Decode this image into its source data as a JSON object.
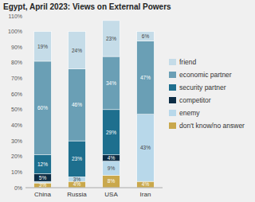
{
  "chart_data": {
    "type": "bar",
    "stacked": true,
    "data_labels": true,
    "grid": false,
    "legend": "right",
    "title": "Egypt, April 2023: Views on External Powers",
    "categories": [
      "China",
      "Russia",
      "USA",
      "Iran"
    ],
    "series": [
      {
        "name": "don't know/no answer",
        "color": "#c9a84c",
        "values": [
          3,
          4,
          8,
          4
        ],
        "value_labels": [
          "3%",
          "4%",
          "8%",
          "4%"
        ]
      },
      {
        "name": "enemy",
        "color": "#b8d8ea",
        "values": [
          1,
          3,
          9,
          43
        ],
        "value_labels": [
          null,
          "3%",
          "9%",
          "43%"
        ]
      },
      {
        "name": "competitor",
        "color": "#0d2d45",
        "values": [
          5,
          0,
          4,
          0
        ],
        "value_labels": [
          "5%",
          null,
          "4%",
          null
        ]
      },
      {
        "name": "security partner",
        "color": "#1e6f8e",
        "values": [
          12,
          23,
          29,
          0
        ],
        "value_labels": [
          "12%",
          "23%",
          "29%",
          null
        ]
      },
      {
        "name": "economic partner",
        "color": "#6a9fb5",
        "values": [
          60,
          46,
          34,
          47
        ],
        "value_labels": [
          "60%",
          "46%",
          "34%",
          "47%"
        ]
      },
      {
        "name": "friend",
        "color": "#c5dce8",
        "values": [
          19,
          24,
          23,
          6
        ],
        "value_labels": [
          "19%",
          "24%",
          "23%",
          "6%"
        ]
      }
    ],
    "ylim": [
      0,
      110
    ],
    "yticks": [
      {
        "value": 0,
        "label": "0%"
      },
      {
        "value": 10,
        "label": "10%"
      },
      {
        "value": 20,
        "label": "20%"
      },
      {
        "value": 30,
        "label": "30%"
      },
      {
        "value": 40,
        "label": "40%"
      },
      {
        "value": 50,
        "label": "50%"
      },
      {
        "value": 60,
        "label": "60%"
      },
      {
        "value": 70,
        "label": "70%"
      },
      {
        "value": 80,
        "label": "80%"
      },
      {
        "value": 90,
        "label": "90%"
      },
      {
        "value": 100,
        "label": "100%"
      },
      {
        "value": 110,
        "label": "110%"
      }
    ]
  }
}
